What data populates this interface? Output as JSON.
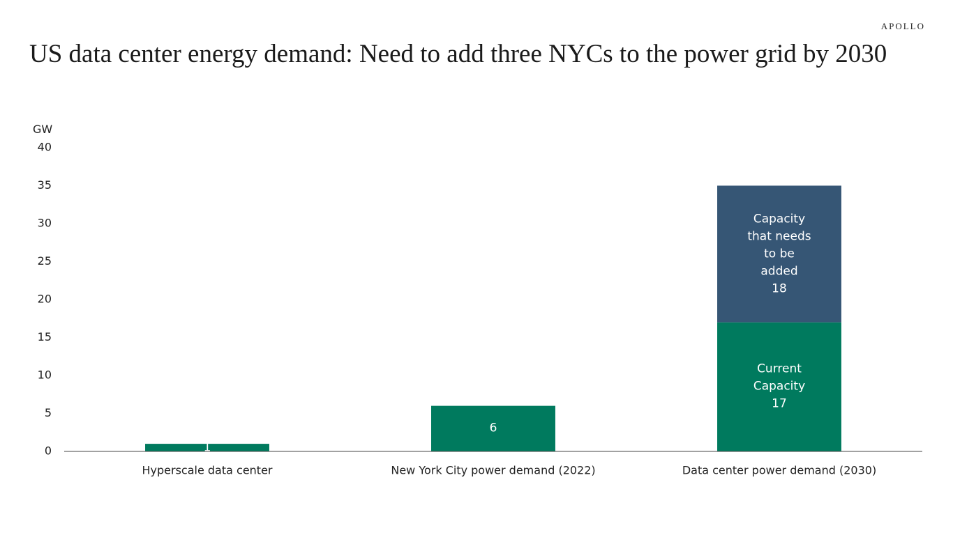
{
  "brand": "APOLLO",
  "chart_data": {
    "type": "stacked_bar",
    "title": "US data center energy demand: Need to add three NYCs to the power grid by 2030",
    "y_label": "GW",
    "categories": [
      "Hyperscale data center",
      "New York City power demand (2022)",
      "Data center power demand (2030)"
    ],
    "series": [
      {
        "name": "Current Capacity",
        "color": "#007a5e",
        "values": [
          1,
          6,
          17
        ]
      },
      {
        "name": "Capacity that needs to be added",
        "color": "#365675",
        "values": [
          null,
          null,
          18
        ]
      }
    ],
    "ylim": [
      0,
      40
    ],
    "yticks": [
      0,
      5,
      10,
      15,
      20,
      25,
      30,
      35,
      40
    ],
    "grid": false
  }
}
